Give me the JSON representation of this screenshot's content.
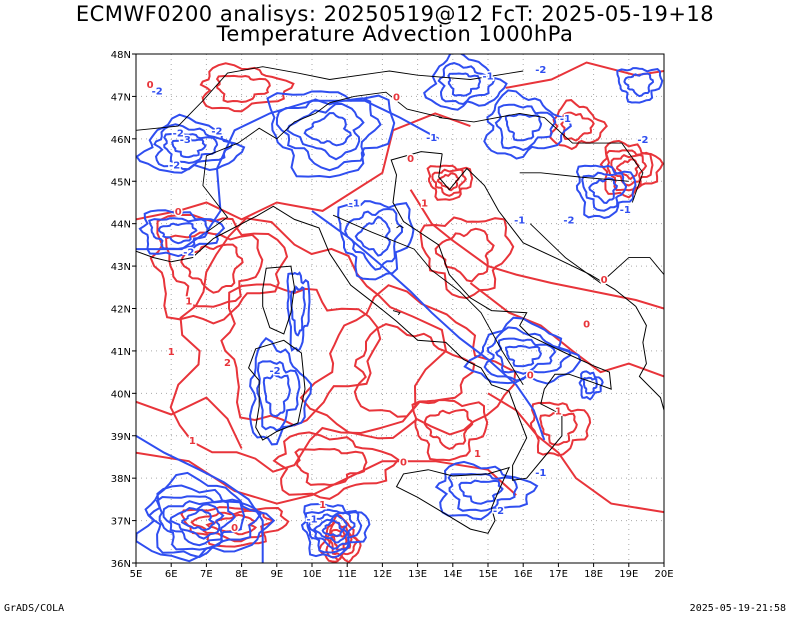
{
  "title_line1": "ECMWF0200 analisys: 20250519@12 FcT: 2025-05-19+18",
  "title_line2": "Temperature Advection 1000hPa",
  "x_ticks": [
    "5E",
    "6E",
    "7E",
    "8E",
    "9E",
    "10E",
    "11E",
    "12E",
    "13E",
    "14E",
    "15E",
    "16E",
    "17E",
    "18E",
    "19E",
    "20E"
  ],
  "y_ticks": [
    "48N",
    "47N",
    "46N",
    "45N",
    "44N",
    "43N",
    "42N",
    "41N",
    "40N",
    "39N",
    "38N",
    "37N",
    "36N"
  ],
  "footer_left": "GrADS/COLA",
  "footer_right": "2025-05-19-21:58",
  "colors": {
    "positive": "#e8343a",
    "negative": "#2f4ef0",
    "grid": "#aaaaaa",
    "coast": "#000000"
  },
  "contour_labels": [
    {
      "text": "-1",
      "lon": 15.0,
      "lat": 47.4,
      "sign": "neg"
    },
    {
      "text": "-2",
      "lon": 16.5,
      "lat": 47.55,
      "sign": "neg"
    },
    {
      "text": "-1",
      "lon": 17.2,
      "lat": 46.4,
      "sign": "neg"
    },
    {
      "text": "-2",
      "lon": 19.4,
      "lat": 45.9,
      "sign": "neg"
    },
    {
      "text": "-1",
      "lon": 18.9,
      "lat": 44.25,
      "sign": "neg"
    },
    {
      "text": "-2",
      "lon": 17.3,
      "lat": 44.0,
      "sign": "neg"
    },
    {
      "text": "-1",
      "lon": 15.9,
      "lat": 44.0,
      "sign": "neg"
    },
    {
      "text": "-2",
      "lon": 6.2,
      "lat": 46.05,
      "sign": "neg"
    },
    {
      "text": "-3",
      "lon": 6.4,
      "lat": 45.9,
      "sign": "neg"
    },
    {
      "text": "-2",
      "lon": 7.3,
      "lat": 46.1,
      "sign": "neg"
    },
    {
      "text": "-2",
      "lon": 5.6,
      "lat": 47.05,
      "sign": "neg"
    },
    {
      "text": "-2",
      "lon": 6.1,
      "lat": 45.3,
      "sign": "neg"
    },
    {
      "text": "-2",
      "lon": 6.5,
      "lat": 43.25,
      "sign": "neg"
    },
    {
      "text": "-1",
      "lon": 11.2,
      "lat": 44.4,
      "sign": "neg"
    },
    {
      "text": "-1",
      "lon": 13.4,
      "lat": 45.95,
      "sign": "neg"
    },
    {
      "text": "-2",
      "lon": 8.95,
      "lat": 40.45,
      "sign": "neg"
    },
    {
      "text": "-1",
      "lon": 16.5,
      "lat": 38.05,
      "sign": "neg"
    },
    {
      "text": "-1",
      "lon": 10.0,
      "lat": 36.95,
      "sign": "neg"
    },
    {
      "text": "-2",
      "lon": 15.3,
      "lat": 37.15,
      "sign": "neg"
    },
    {
      "text": "0",
      "lon": 5.4,
      "lat": 47.2,
      "sign": "pos"
    },
    {
      "text": "0",
      "lon": 12.4,
      "lat": 46.9,
      "sign": "pos"
    },
    {
      "text": "0",
      "lon": 12.8,
      "lat": 45.45,
      "sign": "pos"
    },
    {
      "text": "1",
      "lon": 13.2,
      "lat": 44.4,
      "sign": "pos"
    },
    {
      "text": "0",
      "lon": 6.2,
      "lat": 44.2,
      "sign": "pos"
    },
    {
      "text": "0",
      "lon": 18.3,
      "lat": 42.6,
      "sign": "pos"
    },
    {
      "text": "0",
      "lon": 17.8,
      "lat": 41.55,
      "sign": "pos"
    },
    {
      "text": "1",
      "lon": 6.5,
      "lat": 42.1,
      "sign": "pos"
    },
    {
      "text": "1",
      "lon": 6.0,
      "lat": 40.9,
      "sign": "pos"
    },
    {
      "text": "2",
      "lon": 7.6,
      "lat": 40.65,
      "sign": "pos"
    },
    {
      "text": "0",
      "lon": 16.2,
      "lat": 40.35,
      "sign": "pos"
    },
    {
      "text": "1",
      "lon": 17.0,
      "lat": 39.5,
      "sign": "pos"
    },
    {
      "text": "1",
      "lon": 6.6,
      "lat": 38.8,
      "sign": "pos"
    },
    {
      "text": "1",
      "lon": 14.7,
      "lat": 38.5,
      "sign": "pos"
    },
    {
      "text": "0",
      "lon": 12.6,
      "lat": 38.3,
      "sign": "pos"
    },
    {
      "text": "0",
      "lon": 7.8,
      "lat": 36.75,
      "sign": "pos"
    },
    {
      "text": "1",
      "lon": 10.3,
      "lat": 37.3,
      "sign": "pos"
    }
  ]
}
